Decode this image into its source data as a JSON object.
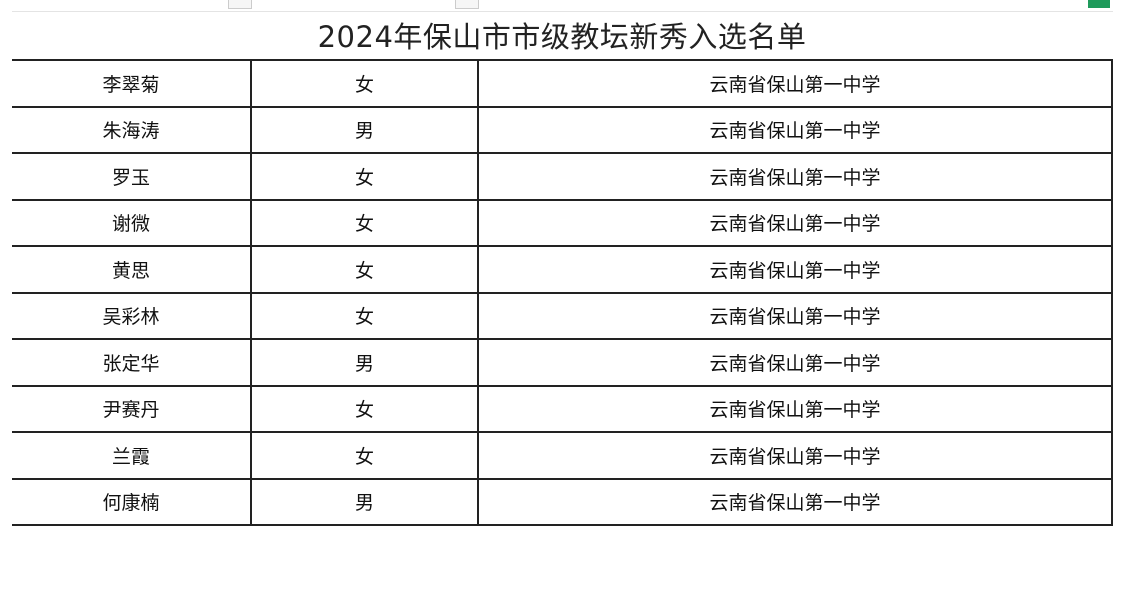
{
  "title": "2024年保山市市级教坛新秀入选名单",
  "accent_color": "#1f9a5b",
  "rows": [
    {
      "name": "李翠菊",
      "gender": "女",
      "school": "云南省保山第一中学"
    },
    {
      "name": "朱海涛",
      "gender": "男",
      "school": "云南省保山第一中学"
    },
    {
      "name": "罗玉",
      "gender": "女",
      "school": "云南省保山第一中学"
    },
    {
      "name": "谢微",
      "gender": "女",
      "school": "云南省保山第一中学"
    },
    {
      "name": "黄思",
      "gender": "女",
      "school": "云南省保山第一中学"
    },
    {
      "name": "吴彩林",
      "gender": "女",
      "school": "云南省保山第一中学"
    },
    {
      "name": "张定华",
      "gender": "男",
      "school": "云南省保山第一中学"
    },
    {
      "name": "尹赛丹",
      "gender": "女",
      "school": "云南省保山第一中学"
    },
    {
      "name": "兰霞",
      "gender": "女",
      "school": "云南省保山第一中学"
    },
    {
      "name": "何康楠",
      "gender": "男",
      "school": "云南省保山第一中学"
    }
  ]
}
